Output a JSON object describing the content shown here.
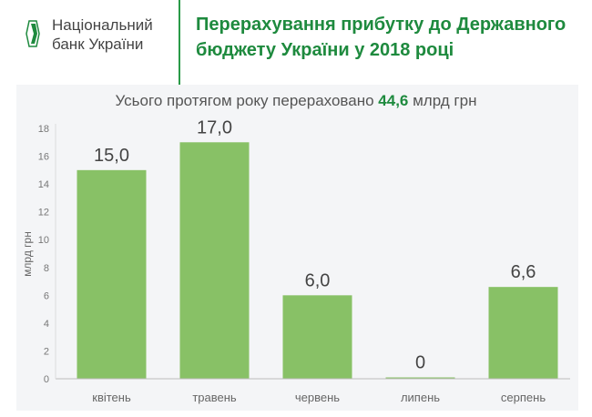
{
  "header": {
    "bank_line1": "Національний",
    "bank_line2": "банк України",
    "title_line1": "Перерахування прибутку до Державного",
    "title_line2": "бюджету України у 2018 році"
  },
  "subtitle": {
    "before": "Усього протягом року перераховано ",
    "value": "44,6",
    "after": " млрд грн"
  },
  "colors": {
    "bar": "#88c166",
    "accent": "#1e8a3e"
  },
  "chart_data": {
    "type": "bar",
    "categories": [
      "квітень",
      "травень",
      "червень",
      "липень",
      "серпень"
    ],
    "values": [
      15.0,
      17.0,
      6.0,
      0,
      6.6
    ],
    "data_labels": [
      "15,0",
      "17,0",
      "6,0",
      "0",
      "6,6"
    ],
    "ylabel": "млрд грн",
    "ylim": [
      0,
      18
    ],
    "yticks": [
      0,
      2,
      4,
      6,
      8,
      10,
      12,
      14,
      16,
      18
    ],
    "grid": false
  }
}
